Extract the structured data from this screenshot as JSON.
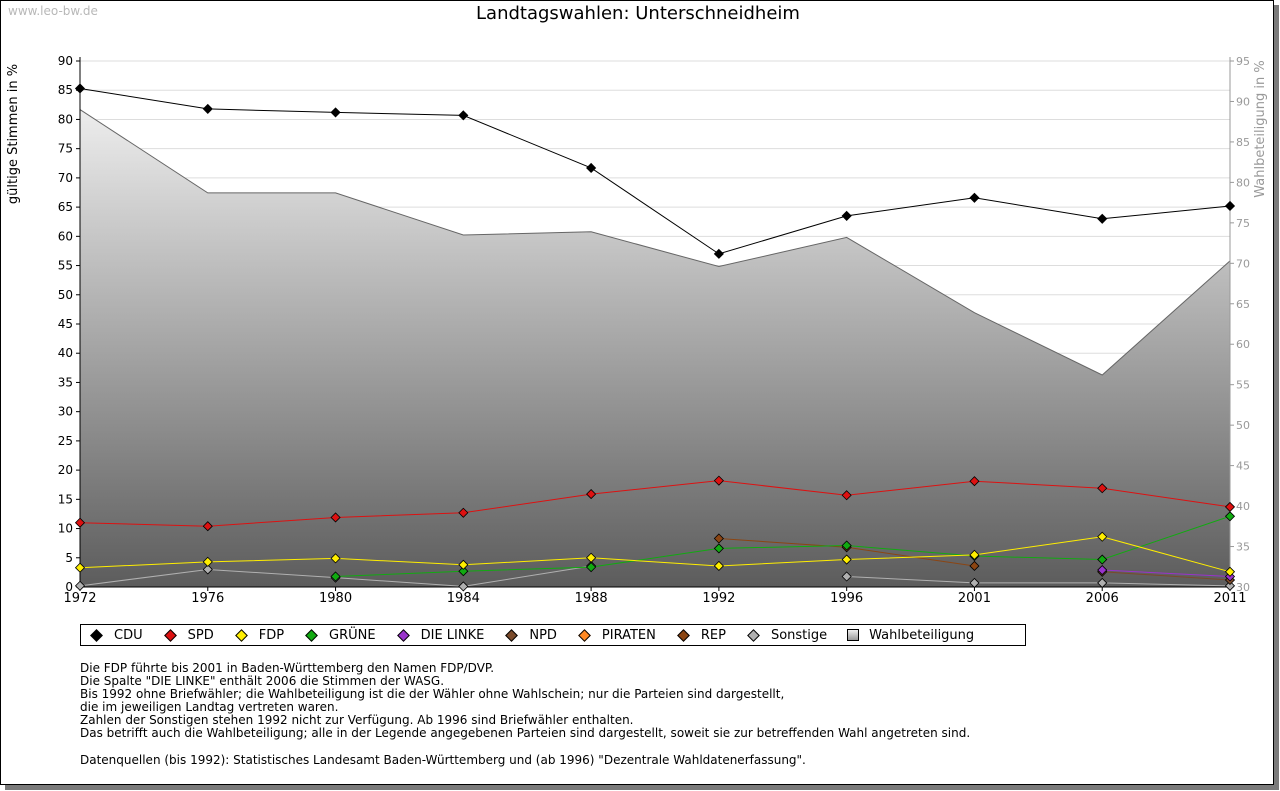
{
  "watermark": "www.leo-bw.de",
  "legend": [
    {
      "name": "CDU",
      "color": "#000000",
      "shape": "diamond"
    },
    {
      "name": "SPD",
      "color": "#dd1111",
      "shape": "diamond"
    },
    {
      "name": "FDP",
      "color": "#ffee00",
      "shape": "diamond"
    },
    {
      "name": "GRÜNE",
      "color": "#11aa11",
      "shape": "diamond"
    },
    {
      "name": "DIE LINKE",
      "color": "#9933cc",
      "shape": "diamond"
    },
    {
      "name": "NPD",
      "color": "#7a4a2a",
      "shape": "diamond"
    },
    {
      "name": "PIRATEN",
      "color": "#ff8822",
      "shape": "diamond"
    },
    {
      "name": "REP",
      "color": "#8b4513",
      "shape": "diamond"
    },
    {
      "name": "Sonstige",
      "color": "#b0b0b0",
      "shape": "diamond"
    },
    {
      "name": "Wahlbeteiligung",
      "color": "#aaaaaa",
      "shape": "square"
    }
  ],
  "notes": [
    "Die FDP führte bis 2001 in Baden-Württemberg den Namen FDP/DVP.",
    "Die Spalte \"DIE LINKE\" enthält 2006 die Stimmen der WASG.",
    "Bis 1992 ohne Briefwähler; die Wahlbeteiligung ist die der Wähler ohne Wahlschein; nur die Parteien sind dargestellt,",
    "die im jeweiligen Landtag vertreten waren.",
    "Zahlen der Sonstigen stehen 1992 nicht zur Verfügung. Ab 1996 sind Briefwähler enthalten.",
    "Das betrifft auch die Wahlbeteiligung; alle in der Legende angegebenen Parteien sind dargestellt, soweit sie zur betreffenden Wahl angetreten sind."
  ],
  "source": "Datenquellen (bis 1992): Statistisches Landesamt Baden-Württemberg und (ab 1996) \"Dezentrale Wahldatenerfassung\".",
  "chart_data": {
    "type": "line",
    "title": "Landtagswahlen: Unterschneidheim",
    "ylabel": "gültige Stimmen in %",
    "y2label": "Wahlbeteiligung in %",
    "ylim": [
      0,
      90
    ],
    "y2lim": [
      30,
      95
    ],
    "yticks": [
      0,
      5,
      10,
      15,
      20,
      25,
      30,
      35,
      40,
      45,
      50,
      55,
      60,
      65,
      70,
      75,
      80,
      85,
      90
    ],
    "y2ticks": [
      30,
      35,
      40,
      45,
      50,
      55,
      60,
      65,
      70,
      75,
      80,
      85,
      90,
      95
    ],
    "x": [
      "1972",
      "1976",
      "1980",
      "1984",
      "1988",
      "1992",
      "1996",
      "2001",
      "2006",
      "2011"
    ],
    "turnout": {
      "name": "Wahlbeteiligung",
      "color": "#aaaaaa",
      "values": [
        89.0,
        78.7,
        78.7,
        73.5,
        73.9,
        69.6,
        73.2,
        63.9,
        56.2,
        70.3
      ]
    },
    "series": [
      {
        "name": "CDU",
        "color": "#000000",
        "values": [
          85.3,
          81.8,
          81.2,
          80.7,
          71.7,
          57.0,
          63.5,
          66.6,
          63.0,
          65.2
        ]
      },
      {
        "name": "SPD",
        "color": "#dd1111",
        "values": [
          11.0,
          10.4,
          11.9,
          12.7,
          15.9,
          18.2,
          15.7,
          18.1,
          16.9,
          13.7
        ]
      },
      {
        "name": "FDP",
        "color": "#ffee00",
        "values": [
          3.3,
          4.3,
          4.9,
          3.8,
          5.0,
          3.6,
          4.7,
          5.5,
          8.6,
          2.6
        ]
      },
      {
        "name": "GRÜNE",
        "color": "#11aa11",
        "values": [
          null,
          null,
          1.8,
          2.7,
          3.4,
          6.6,
          7.1,
          5.3,
          4.7,
          12.1
        ]
      },
      {
        "name": "DIE LINKE",
        "color": "#9933cc",
        "values": [
          null,
          null,
          null,
          null,
          null,
          null,
          null,
          null,
          2.9,
          1.8
        ]
      },
      {
        "name": "NPD",
        "color": "#7a4a2a",
        "values": [
          null,
          null,
          null,
          null,
          null,
          null,
          null,
          null,
          2.6,
          1.2
        ]
      },
      {
        "name": "REP",
        "color": "#8b4513",
        "values": [
          null,
          null,
          null,
          null,
          null,
          8.3,
          6.8,
          3.6,
          null,
          null
        ]
      },
      {
        "name": "Sonstige",
        "color": "#b0b0b0",
        "values": [
          0.2,
          3.0,
          1.6,
          0.1,
          3.6,
          null,
          1.8,
          0.7,
          0.7,
          0.2
        ]
      }
    ]
  }
}
